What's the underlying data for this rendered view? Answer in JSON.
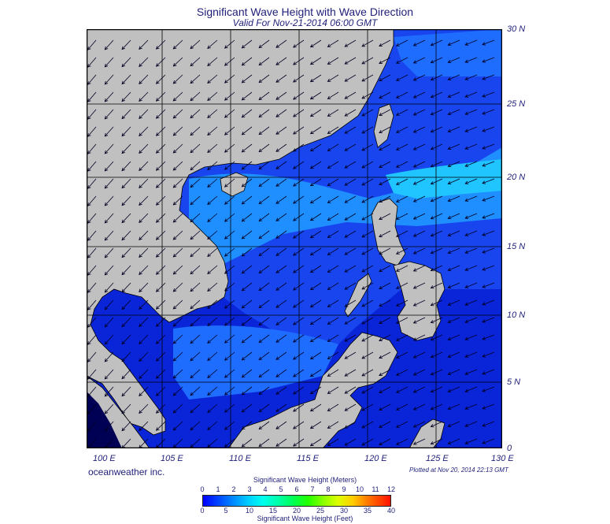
{
  "title": "Significant Wave Height with Wave Direction",
  "subtitle": "Valid For Nov-21-2014 06:00 GMT",
  "credit": "oceanweather inc.",
  "plotted": "Plotted at Nov 20, 2014 22:13 GMT",
  "latitude_labels": [
    "30 N",
    "25 N",
    "20 N",
    "15 N",
    "10 N",
    "5 N",
    "0"
  ],
  "longitude_labels": [
    "100 E",
    "105 E",
    "110 E",
    "115 E",
    "120 E",
    "125 E",
    "130 E"
  ],
  "legend": {
    "meters_title": "Significant Wave Height (Meters)",
    "feet_title": "Significant Wave Height (Feet)",
    "meters_ticks": [
      "0",
      "1",
      "2",
      "3",
      "4",
      "5",
      "6",
      "7",
      "8",
      "9",
      "10",
      "11",
      "12"
    ],
    "feet_ticks": [
      "0",
      "5",
      "10",
      "15",
      "20",
      "25",
      "30",
      "35",
      "40"
    ]
  },
  "colors": {
    "land": "#c0c0c0",
    "deep_blue": "#0000cc",
    "mid_blue": "#1a4dff",
    "light_blue": "#1f8fff",
    "cyan": "#1ecfff",
    "frame": "#000000"
  }
}
